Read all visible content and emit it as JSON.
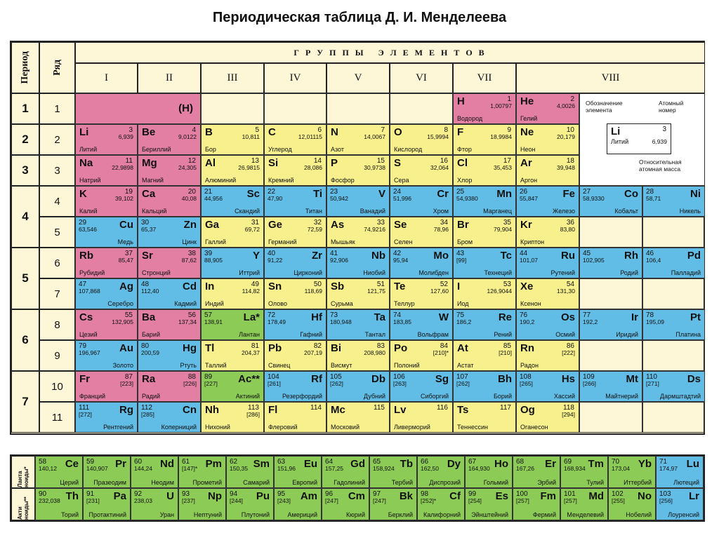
{
  "title": "Периодическая таблица Д. И. Менделеева",
  "headers": {
    "period": "Период",
    "row": "Ряд",
    "groups_title": "Г Р У П П Ы   Э Л Е М Е Н Т О В",
    "groups": [
      "I",
      "II",
      "III",
      "IV",
      "V",
      "VI",
      "VII",
      "VIII"
    ]
  },
  "periods": [
    "1",
    "2",
    "3",
    "4",
    "5",
    "6",
    "7"
  ],
  "rows": [
    "1",
    "2",
    "3",
    "4",
    "5",
    "6",
    "7",
    "8",
    "9",
    "10",
    "11"
  ],
  "row1_placeholder": "(H)",
  "legend": {
    "designation": "Обозначение элемента",
    "atomic_number": "Атомный номер",
    "symbol": "Li",
    "number": "3",
    "mass": "6,939",
    "name": "Литий",
    "rel_mass": "Относительная атомная масса"
  },
  "lanth_label": "Ланта ноиды*",
  "actin_label": "Акти ноиды**",
  "elements": [
    {
      "r": 0,
      "c": 6,
      "sym": "H",
      "n": "1",
      "m": "1,00797",
      "name": "Водород",
      "t": "s",
      "side": "l"
    },
    {
      "r": 0,
      "c": 7,
      "sym": "He",
      "n": "2",
      "m": "4,0026",
      "name": "Гелий",
      "t": "s",
      "side": "l"
    },
    {
      "r": 1,
      "c": 0,
      "sym": "Li",
      "n": "3",
      "m": "6,939",
      "name": "Литий",
      "t": "s",
      "side": "l"
    },
    {
      "r": 1,
      "c": 1,
      "sym": "Be",
      "n": "4",
      "m": "9,0122",
      "name": "Бериллий",
      "t": "s",
      "side": "l"
    },
    {
      "r": 1,
      "c": 2,
      "sym": "B",
      "n": "5",
      "m": "10,811",
      "name": "Бор",
      "t": "p",
      "side": "l"
    },
    {
      "r": 1,
      "c": 3,
      "sym": "C",
      "n": "6",
      "m": "12,01115",
      "name": "Углерод",
      "t": "p",
      "side": "l"
    },
    {
      "r": 1,
      "c": 4,
      "sym": "N",
      "n": "7",
      "m": "14,0067",
      "name": "Азот",
      "t": "p",
      "side": "l"
    },
    {
      "r": 1,
      "c": 5,
      "sym": "O",
      "n": "8",
      "m": "15,9994",
      "name": "Кислород",
      "t": "p",
      "side": "l"
    },
    {
      "r": 1,
      "c": 6,
      "sym": "F",
      "n": "9",
      "m": "18,9984",
      "name": "Фтор",
      "t": "p",
      "side": "l"
    },
    {
      "r": 1,
      "c": 7,
      "sym": "Ne",
      "n": "10",
      "m": "20,179",
      "name": "Неон",
      "t": "p",
      "side": "l"
    },
    {
      "r": 2,
      "c": 0,
      "sym": "Na",
      "n": "11",
      "m": "22,9898",
      "name": "Натрий",
      "t": "s",
      "side": "l"
    },
    {
      "r": 2,
      "c": 1,
      "sym": "Mg",
      "n": "12",
      "m": "24,305",
      "name": "Магний",
      "t": "s",
      "side": "l"
    },
    {
      "r": 2,
      "c": 2,
      "sym": "Al",
      "n": "13",
      "m": "26,9815",
      "name": "Алюминий",
      "t": "p",
      "side": "l"
    },
    {
      "r": 2,
      "c": 3,
      "sym": "Si",
      "n": "14",
      "m": "28,086",
      "name": "Кремний",
      "t": "p",
      "side": "l"
    },
    {
      "r": 2,
      "c": 4,
      "sym": "P",
      "n": "15",
      "m": "30,9738",
      "name": "Фосфор",
      "t": "p",
      "side": "l"
    },
    {
      "r": 2,
      "c": 5,
      "sym": "S",
      "n": "16",
      "m": "32,064",
      "name": "Сера",
      "t": "p",
      "side": "l"
    },
    {
      "r": 2,
      "c": 6,
      "sym": "Cl",
      "n": "17",
      "m": "35,453",
      "name": "Хлор",
      "t": "p",
      "side": "l"
    },
    {
      "r": 2,
      "c": 7,
      "sym": "Ar",
      "n": "18",
      "m": "39,948",
      "name": "Аргон",
      "t": "p",
      "side": "l"
    },
    {
      "r": 3,
      "c": 0,
      "sym": "K",
      "n": "19",
      "m": "39,102",
      "name": "Калий",
      "t": "s",
      "side": "l"
    },
    {
      "r": 3,
      "c": 1,
      "sym": "Ca",
      "n": "20",
      "m": "40,08",
      "name": "Кальций",
      "t": "s",
      "side": "l"
    },
    {
      "r": 3,
      "c": 2,
      "sym": "Sc",
      "n": "21",
      "m": "44,956",
      "name": "Скандий",
      "t": "d",
      "side": "r"
    },
    {
      "r": 3,
      "c": 3,
      "sym": "Ti",
      "n": "22",
      "m": "47,90",
      "name": "Титан",
      "t": "d",
      "side": "r"
    },
    {
      "r": 3,
      "c": 4,
      "sym": "V",
      "n": "23",
      "m": "50,942",
      "name": "Ванадий",
      "t": "d",
      "side": "r"
    },
    {
      "r": 3,
      "c": 5,
      "sym": "Cr",
      "n": "24",
      "m": "51,996",
      "name": "Хром",
      "t": "d",
      "side": "r"
    },
    {
      "r": 3,
      "c": 6,
      "sym": "Mn",
      "n": "25",
      "m": "54,9380",
      "name": "Марганец",
      "t": "d",
      "side": "r"
    },
    {
      "r": 3,
      "c": 7,
      "sym": "Fe",
      "n": "26",
      "m": "55,847",
      "name": "Железо",
      "t": "d",
      "side": "r"
    },
    {
      "r": 3,
      "c": 8,
      "sym": "Co",
      "n": "27",
      "m": "58,9330",
      "name": "Кобальт",
      "t": "d",
      "side": "r"
    },
    {
      "r": 3,
      "c": 9,
      "sym": "Ni",
      "n": "28",
      "m": "58,71",
      "name": "Никель",
      "t": "d",
      "side": "r"
    },
    {
      "r": 4,
      "c": 0,
      "sym": "Cu",
      "n": "29",
      "m": "63,546",
      "name": "Медь",
      "t": "d",
      "side": "r"
    },
    {
      "r": 4,
      "c": 1,
      "sym": "Zn",
      "n": "30",
      "m": "65,37",
      "name": "Цинк",
      "t": "d",
      "side": "r"
    },
    {
      "r": 4,
      "c": 2,
      "sym": "Ga",
      "n": "31",
      "m": "69,72",
      "name": "Галлий",
      "t": "p",
      "side": "l"
    },
    {
      "r": 4,
      "c": 3,
      "sym": "Ge",
      "n": "32",
      "m": "72,59",
      "name": "Германий",
      "t": "p",
      "side": "l"
    },
    {
      "r": 4,
      "c": 4,
      "sym": "As",
      "n": "33",
      "m": "74,9216",
      "name": "Мышьяк",
      "t": "p",
      "side": "l"
    },
    {
      "r": 4,
      "c": 5,
      "sym": "Se",
      "n": "34",
      "m": "78,96",
      "name": "Селен",
      "t": "p",
      "side": "l"
    },
    {
      "r": 4,
      "c": 6,
      "sym": "Br",
      "n": "35",
      "m": "79,904",
      "name": "Бром",
      "t": "p",
      "side": "l"
    },
    {
      "r": 4,
      "c": 7,
      "sym": "Kr",
      "n": "36",
      "m": "83,80",
      "name": "Криптон",
      "t": "p",
      "side": "l"
    },
    {
      "r": 5,
      "c": 0,
      "sym": "Rb",
      "n": "37",
      "m": "85,47",
      "name": "Рубидий",
      "t": "s",
      "side": "l"
    },
    {
      "r": 5,
      "c": 1,
      "sym": "Sr",
      "n": "38",
      "m": "87,62",
      "name": "Стронций",
      "t": "s",
      "side": "l"
    },
    {
      "r": 5,
      "c": 2,
      "sym": "Y",
      "n": "39",
      "m": "88,905",
      "name": "Иттрий",
      "t": "d",
      "side": "r"
    },
    {
      "r": 5,
      "c": 3,
      "sym": "Zr",
      "n": "40",
      "m": "91,22",
      "name": "Цирконий",
      "t": "d",
      "side": "r"
    },
    {
      "r": 5,
      "c": 4,
      "sym": "Nb",
      "n": "41",
      "m": "92,906",
      "name": "Ниобий",
      "t": "d",
      "side": "r"
    },
    {
      "r": 5,
      "c": 5,
      "sym": "Mo",
      "n": "42",
      "m": "95,94",
      "name": "Молибден",
      "t": "d",
      "side": "r"
    },
    {
      "r": 5,
      "c": 6,
      "sym": "Tc",
      "n": "43",
      "m": "[99]",
      "name": "Технеций",
      "t": "d",
      "side": "r"
    },
    {
      "r": 5,
      "c": 7,
      "sym": "Ru",
      "n": "44",
      "m": "101,07",
      "name": "Рутений",
      "t": "d",
      "side": "r"
    },
    {
      "r": 5,
      "c": 8,
      "sym": "Rh",
      "n": "45",
      "m": "102,905",
      "name": "Родий",
      "t": "d",
      "side": "r"
    },
    {
      "r": 5,
      "c": 9,
      "sym": "Pd",
      "n": "46",
      "m": "106,4",
      "name": "Палладий",
      "t": "d",
      "side": "r"
    },
    {
      "r": 6,
      "c": 0,
      "sym": "Ag",
      "n": "47",
      "m": "107,868",
      "name": "Серебро",
      "t": "d",
      "side": "r"
    },
    {
      "r": 6,
      "c": 1,
      "sym": "Cd",
      "n": "48",
      "m": "112,40",
      "name": "Кадмий",
      "t": "d",
      "side": "r"
    },
    {
      "r": 6,
      "c": 2,
      "sym": "In",
      "n": "49",
      "m": "114,82",
      "name": "Индий",
      "t": "p",
      "side": "l"
    },
    {
      "r": 6,
      "c": 3,
      "sym": "Sn",
      "n": "50",
      "m": "118,69",
      "name": "Олово",
      "t": "p",
      "side": "l"
    },
    {
      "r": 6,
      "c": 4,
      "sym": "Sb",
      "n": "51",
      "m": "121,75",
      "name": "Сурьма",
      "t": "p",
      "side": "l"
    },
    {
      "r": 6,
      "c": 5,
      "sym": "Te",
      "n": "52",
      "m": "127,60",
      "name": "Теллур",
      "t": "p",
      "side": "l"
    },
    {
      "r": 6,
      "c": 6,
      "sym": "I",
      "n": "53",
      "m": "126,9044",
      "name": "Иод",
      "t": "p",
      "side": "l"
    },
    {
      "r": 6,
      "c": 7,
      "sym": "Xe",
      "n": "54",
      "m": "131,30",
      "name": "Ксенон",
      "t": "p",
      "side": "l"
    },
    {
      "r": 7,
      "c": 0,
      "sym": "Cs",
      "n": "55",
      "m": "132,905",
      "name": "Цезий",
      "t": "s",
      "side": "l"
    },
    {
      "r": 7,
      "c": 1,
      "sym": "Ba",
      "n": "56",
      "m": "137,34",
      "name": "Барий",
      "t": "s",
      "side": "l"
    },
    {
      "r": 7,
      "c": 2,
      "sym": "La*",
      "n": "57",
      "m": "138,91",
      "name": "Лантан",
      "t": "f",
      "side": "r"
    },
    {
      "r": 7,
      "c": 3,
      "sym": "Hf",
      "n": "72",
      "m": "178,49",
      "name": "Гафний",
      "t": "d",
      "side": "r"
    },
    {
      "r": 7,
      "c": 4,
      "sym": "Ta",
      "n": "73",
      "m": "180,948",
      "name": "Тантал",
      "t": "d",
      "side": "r"
    },
    {
      "r": 7,
      "c": 5,
      "sym": "W",
      "n": "74",
      "m": "183,85",
      "name": "Вольфрам",
      "t": "d",
      "side": "r"
    },
    {
      "r": 7,
      "c": 6,
      "sym": "Re",
      "n": "75",
      "m": "186,2",
      "name": "Рений",
      "t": "d",
      "side": "r"
    },
    {
      "r": 7,
      "c": 7,
      "sym": "Os",
      "n": "76",
      "m": "190,2",
      "name": "Осмий",
      "t": "d",
      "side": "r"
    },
    {
      "r": 7,
      "c": 8,
      "sym": "Ir",
      "n": "77",
      "m": "192,2",
      "name": "Иридий",
      "t": "d",
      "side": "r"
    },
    {
      "r": 7,
      "c": 9,
      "sym": "Pt",
      "n": "78",
      "m": "195,09",
      "name": "Платина",
      "t": "d",
      "side": "r"
    },
    {
      "r": 8,
      "c": 0,
      "sym": "Au",
      "n": "79",
      "m": "196,967",
      "name": "Золото",
      "t": "d",
      "side": "r"
    },
    {
      "r": 8,
      "c": 1,
      "sym": "Hg",
      "n": "80",
      "m": "200,59",
      "name": "Ртуть",
      "t": "d",
      "side": "r"
    },
    {
      "r": 8,
      "c": 2,
      "sym": "Tl",
      "n": "81",
      "m": "204,37",
      "name": "Таллий",
      "t": "p",
      "side": "l"
    },
    {
      "r": 8,
      "c": 3,
      "sym": "Pb",
      "n": "82",
      "m": "207,19",
      "name": "Свинец",
      "t": "p",
      "side": "l"
    },
    {
      "r": 8,
      "c": 4,
      "sym": "Bi",
      "n": "83",
      "m": "208,980",
      "name": "Висмут",
      "t": "p",
      "side": "l"
    },
    {
      "r": 8,
      "c": 5,
      "sym": "Po",
      "n": "84",
      "m": "[210]*",
      "name": "Полоний",
      "t": "p",
      "side": "l"
    },
    {
      "r": 8,
      "c": 6,
      "sym": "At",
      "n": "85",
      "m": "[210]",
      "name": "Астат",
      "t": "p",
      "side": "l"
    },
    {
      "r": 8,
      "c": 7,
      "sym": "Rn",
      "n": "86",
      "m": "[222]",
      "name": "Радон",
      "t": "p",
      "side": "l"
    },
    {
      "r": 9,
      "c": 0,
      "sym": "Fr",
      "n": "87",
      "m": "[223]",
      "name": "Франций",
      "t": "s",
      "side": "l"
    },
    {
      "r": 9,
      "c": 1,
      "sym": "Ra",
      "n": "88",
      "m": "[226]",
      "name": "Радий",
      "t": "s",
      "side": "l"
    },
    {
      "r": 9,
      "c": 2,
      "sym": "Ac**",
      "n": "89",
      "m": "[227]",
      "name": "Актиний",
      "t": "f",
      "side": "r"
    },
    {
      "r": 9,
      "c": 3,
      "sym": "Rf",
      "n": "104",
      "m": "[261]",
      "name": "Резерфордий",
      "t": "d",
      "side": "r"
    },
    {
      "r": 9,
      "c": 4,
      "sym": "Db",
      "n": "105",
      "m": "[262]",
      "name": "Дубний",
      "t": "d",
      "side": "r"
    },
    {
      "r": 9,
      "c": 5,
      "sym": "Sg",
      "n": "106",
      "m": "[263]",
      "name": "Сиборгий",
      "t": "d",
      "side": "r"
    },
    {
      "r": 9,
      "c": 6,
      "sym": "Bh",
      "n": "107",
      "m": "[262]",
      "name": "Борий",
      "t": "d",
      "side": "r"
    },
    {
      "r": 9,
      "c": 7,
      "sym": "Hs",
      "n": "108",
      "m": "[265]",
      "name": "Хассий",
      "t": "d",
      "side": "r"
    },
    {
      "r": 9,
      "c": 8,
      "sym": "Mt",
      "n": "109",
      "m": "[266]",
      "name": "Майтнерий",
      "t": "d",
      "side": "r"
    },
    {
      "r": 9,
      "c": 9,
      "sym": "Ds",
      "n": "110",
      "m": "[271]",
      "name": "Дармштадтий",
      "t": "d",
      "side": "r"
    },
    {
      "r": 10,
      "c": 0,
      "sym": "Rg",
      "n": "111",
      "m": "[272]",
      "name": "Рентгений",
      "t": "d",
      "side": "r"
    },
    {
      "r": 10,
      "c": 1,
      "sym": "Cn",
      "n": "112",
      "m": "[285]",
      "name": "Коперниций",
      "t": "d",
      "side": "r"
    },
    {
      "r": 10,
      "c": 2,
      "sym": "Nh",
      "n": "113",
      "m": "[286]",
      "name": "Нихоний",
      "t": "p",
      "side": "l"
    },
    {
      "r": 10,
      "c": 3,
      "sym": "Fl",
      "n": "114",
      "m": "",
      "name": "Флеровий",
      "t": "p",
      "side": "l"
    },
    {
      "r": 10,
      "c": 4,
      "sym": "Mc",
      "n": "115",
      "m": "",
      "name": "Московий",
      "t": "p",
      "side": "l"
    },
    {
      "r": 10,
      "c": 5,
      "sym": "Lv",
      "n": "116",
      "m": "",
      "name": "Ливерморий",
      "t": "p",
      "side": "l"
    },
    {
      "r": 10,
      "c": 6,
      "sym": "Ts",
      "n": "117",
      "m": "",
      "name": "Теннессин",
      "t": "p",
      "side": "l"
    },
    {
      "r": 10,
      "c": 7,
      "sym": "Og",
      "n": "118",
      "m": "[294]",
      "name": "Оганесон",
      "t": "p",
      "side": "l"
    }
  ],
  "lanthanides": [
    {
      "sym": "Ce",
      "n": "58",
      "m": "140,12",
      "name": "Церий"
    },
    {
      "sym": "Pr",
      "n": "59",
      "m": "140,907",
      "name": "Празеодим"
    },
    {
      "sym": "Nd",
      "n": "60",
      "m": "144,24",
      "name": "Неодим"
    },
    {
      "sym": "Pm",
      "n": "61",
      "m": "[147]*",
      "name": "Прометий"
    },
    {
      "sym": "Sm",
      "n": "62",
      "m": "150,35",
      "name": "Самарий"
    },
    {
      "sym": "Eu",
      "n": "63",
      "m": "151,96",
      "name": "Европий"
    },
    {
      "sym": "Gd",
      "n": "64",
      "m": "157,25",
      "name": "Гадолиний"
    },
    {
      "sym": "Tb",
      "n": "65",
      "m": "158,924",
      "name": "Тербий"
    },
    {
      "sym": "Dy",
      "n": "66",
      "m": "162,50",
      "name": "Диспрозий"
    },
    {
      "sym": "Ho",
      "n": "67",
      "m": "164,930",
      "name": "Гольмий"
    },
    {
      "sym": "Er",
      "n": "68",
      "m": "167,26",
      "name": "Эрбий"
    },
    {
      "sym": "Tm",
      "n": "69",
      "m": "168,934",
      "name": "Тулий"
    },
    {
      "sym": "Yb",
      "n": "70",
      "m": "173,04",
      "name": "Иттербий"
    },
    {
      "sym": "Lu",
      "n": "71",
      "m": "174,97",
      "name": "Лютеций"
    }
  ],
  "actinides": [
    {
      "sym": "Th",
      "n": "90",
      "m": "232,038",
      "name": "Торий"
    },
    {
      "sym": "Pa",
      "n": "91",
      "m": "[231]",
      "name": "Протактиний"
    },
    {
      "sym": "U",
      "n": "92",
      "m": "238,03",
      "name": "Уран"
    },
    {
      "sym": "Np",
      "n": "93",
      "m": "[237]",
      "name": "Нептуний"
    },
    {
      "sym": "Pu",
      "n": "94",
      "m": "[244]",
      "name": "Плутоний"
    },
    {
      "sym": "Am",
      "n": "95",
      "m": "[243]",
      "name": "Америций"
    },
    {
      "sym": "Cm",
      "n": "96",
      "m": "[247]",
      "name": "Кюрий"
    },
    {
      "sym": "Bk",
      "n": "97",
      "m": "[247]",
      "name": "Берклий"
    },
    {
      "sym": "Cf",
      "n": "98",
      "m": "[252]*",
      "name": "Калифорний"
    },
    {
      "sym": "Es",
      "n": "99",
      "m": "[254]",
      "name": "Эйнштейний"
    },
    {
      "sym": "Fm",
      "n": "100",
      "m": "[257]",
      "name": "Фермий"
    },
    {
      "sym": "Md",
      "n": "101",
      "m": "[257]",
      "name": "Менделевий"
    },
    {
      "sym": "No",
      "n": "102",
      "m": "[255]",
      "name": "Нобелий"
    },
    {
      "sym": "Lr",
      "n": "103",
      "m": "[256]",
      "name": "Лоуренсий"
    }
  ]
}
